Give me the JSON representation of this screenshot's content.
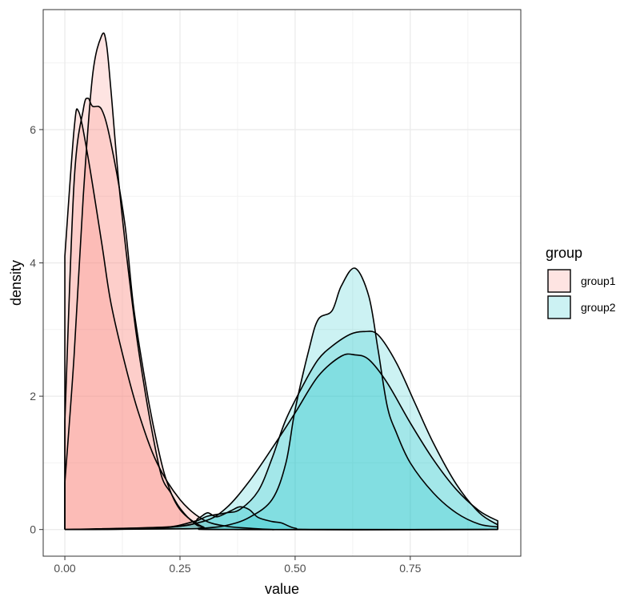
{
  "chart_data": {
    "type": "area",
    "subtype": "density",
    "xlabel": "value",
    "ylabel": "density",
    "xlim": [
      -0.047,
      0.99
    ],
    "ylim": [
      -0.4,
      7.8
    ],
    "x_ticks": [
      0.0,
      0.25,
      0.5,
      0.75
    ],
    "x_tick_labels": [
      "0.00",
      "0.25",
      "0.50",
      "0.75"
    ],
    "y_ticks": [
      0,
      2,
      4,
      6
    ],
    "y_tick_labels": [
      "0",
      "2",
      "4",
      "6"
    ],
    "grid": true,
    "legend": {
      "title": "group",
      "position": "right",
      "entries": [
        {
          "label": "group1",
          "color": "#F8766D"
        },
        {
          "label": "group2",
          "color": "#00BFC4"
        }
      ]
    },
    "series": [
      {
        "group": "group1",
        "color": "#F8766D",
        "x": [
          0,
          0.02,
          0.03,
          0.05,
          0.08,
          0.1,
          0.13,
          0.16,
          0.2,
          0.25,
          0.3,
          0.35,
          0.4,
          0.45,
          0.5,
          0.94
        ],
        "y": [
          4.1,
          6.0,
          6.27,
          5.6,
          4.3,
          3.4,
          2.5,
          1.75,
          1.0,
          0.45,
          0.15,
          0.05,
          0.02,
          0,
          0,
          0
        ]
      },
      {
        "group": "group1",
        "color": "#F8766D",
        "x": [
          0,
          0.02,
          0.04,
          0.05,
          0.06,
          0.08,
          0.1,
          0.13,
          0.15,
          0.18,
          0.2,
          0.22,
          0.25,
          0.3,
          0.35,
          0.94
        ],
        "y": [
          1.62,
          5.2,
          6.3,
          6.47,
          6.35,
          6.3,
          5.8,
          4.6,
          3.3,
          2.0,
          1.3,
          0.75,
          0.3,
          0.04,
          0,
          0
        ]
      },
      {
        "group": "group1",
        "color": "#F8766D",
        "x": [
          0,
          0.02,
          0.04,
          0.06,
          0.08,
          0.09,
          0.1,
          0.12,
          0.15,
          0.17,
          0.19,
          0.21,
          0.23,
          0.25,
          0.28,
          0.3,
          0.35,
          0.94
        ],
        "y": [
          0.7,
          2.6,
          5.0,
          6.8,
          7.41,
          7.3,
          6.6,
          5.0,
          3.2,
          2.25,
          1.45,
          0.8,
          0.55,
          0.32,
          0.1,
          0.04,
          0,
          0
        ]
      },
      {
        "group": "group2",
        "color": "#00BFC4",
        "x": [
          0,
          0.2,
          0.3,
          0.35,
          0.4,
          0.45,
          0.5,
          0.55,
          0.6,
          0.63,
          0.66,
          0.7,
          0.75,
          0.8,
          0.85,
          0.9,
          0.94
        ],
        "y": [
          0,
          0.02,
          0.12,
          0.32,
          0.72,
          1.22,
          1.75,
          2.3,
          2.6,
          2.62,
          2.55,
          2.2,
          1.6,
          1.05,
          0.6,
          0.28,
          0.13
        ]
      },
      {
        "group": "group2",
        "color": "#00BFC4",
        "x": [
          0,
          0.2,
          0.28,
          0.31,
          0.35,
          0.38,
          0.42,
          0.45,
          0.48,
          0.52,
          0.55,
          0.58,
          0.62,
          0.65,
          0.68,
          0.72,
          0.76,
          0.8,
          0.85,
          0.9,
          0.94
        ],
        "y": [
          0,
          0.02,
          0.12,
          0.2,
          0.25,
          0.3,
          0.58,
          1.07,
          1.65,
          2.2,
          2.55,
          2.75,
          2.93,
          2.97,
          2.92,
          2.5,
          1.9,
          1.3,
          0.68,
          0.25,
          0.07
        ]
      },
      {
        "group": "group2",
        "color": "#00BFC4",
        "x": [
          0,
          0.25,
          0.3,
          0.35,
          0.4,
          0.45,
          0.48,
          0.5,
          0.53,
          0.55,
          0.58,
          0.6,
          0.63,
          0.66,
          0.68,
          0.7,
          0.72,
          0.75,
          0.8,
          0.85,
          0.9,
          0.94
        ],
        "y": [
          0,
          0.01,
          0.02,
          0.06,
          0.18,
          0.45,
          1.0,
          1.8,
          2.7,
          3.15,
          3.28,
          3.65,
          3.92,
          3.5,
          2.7,
          1.85,
          1.45,
          1.0,
          0.55,
          0.25,
          0.08,
          0.04
        ]
      },
      {
        "group": "group2",
        "color": "#00BFC4",
        "x": [
          0,
          0.25,
          0.29,
          0.31,
          0.33,
          0.36,
          0.38,
          0.4,
          0.42,
          0.45,
          0.47,
          0.5,
          0.55,
          0.94
        ],
        "y": [
          0,
          0.05,
          0.17,
          0.25,
          0.19,
          0.28,
          0.34,
          0.3,
          0.18,
          0.12,
          0.1,
          0.02,
          0,
          0
        ]
      }
    ]
  }
}
